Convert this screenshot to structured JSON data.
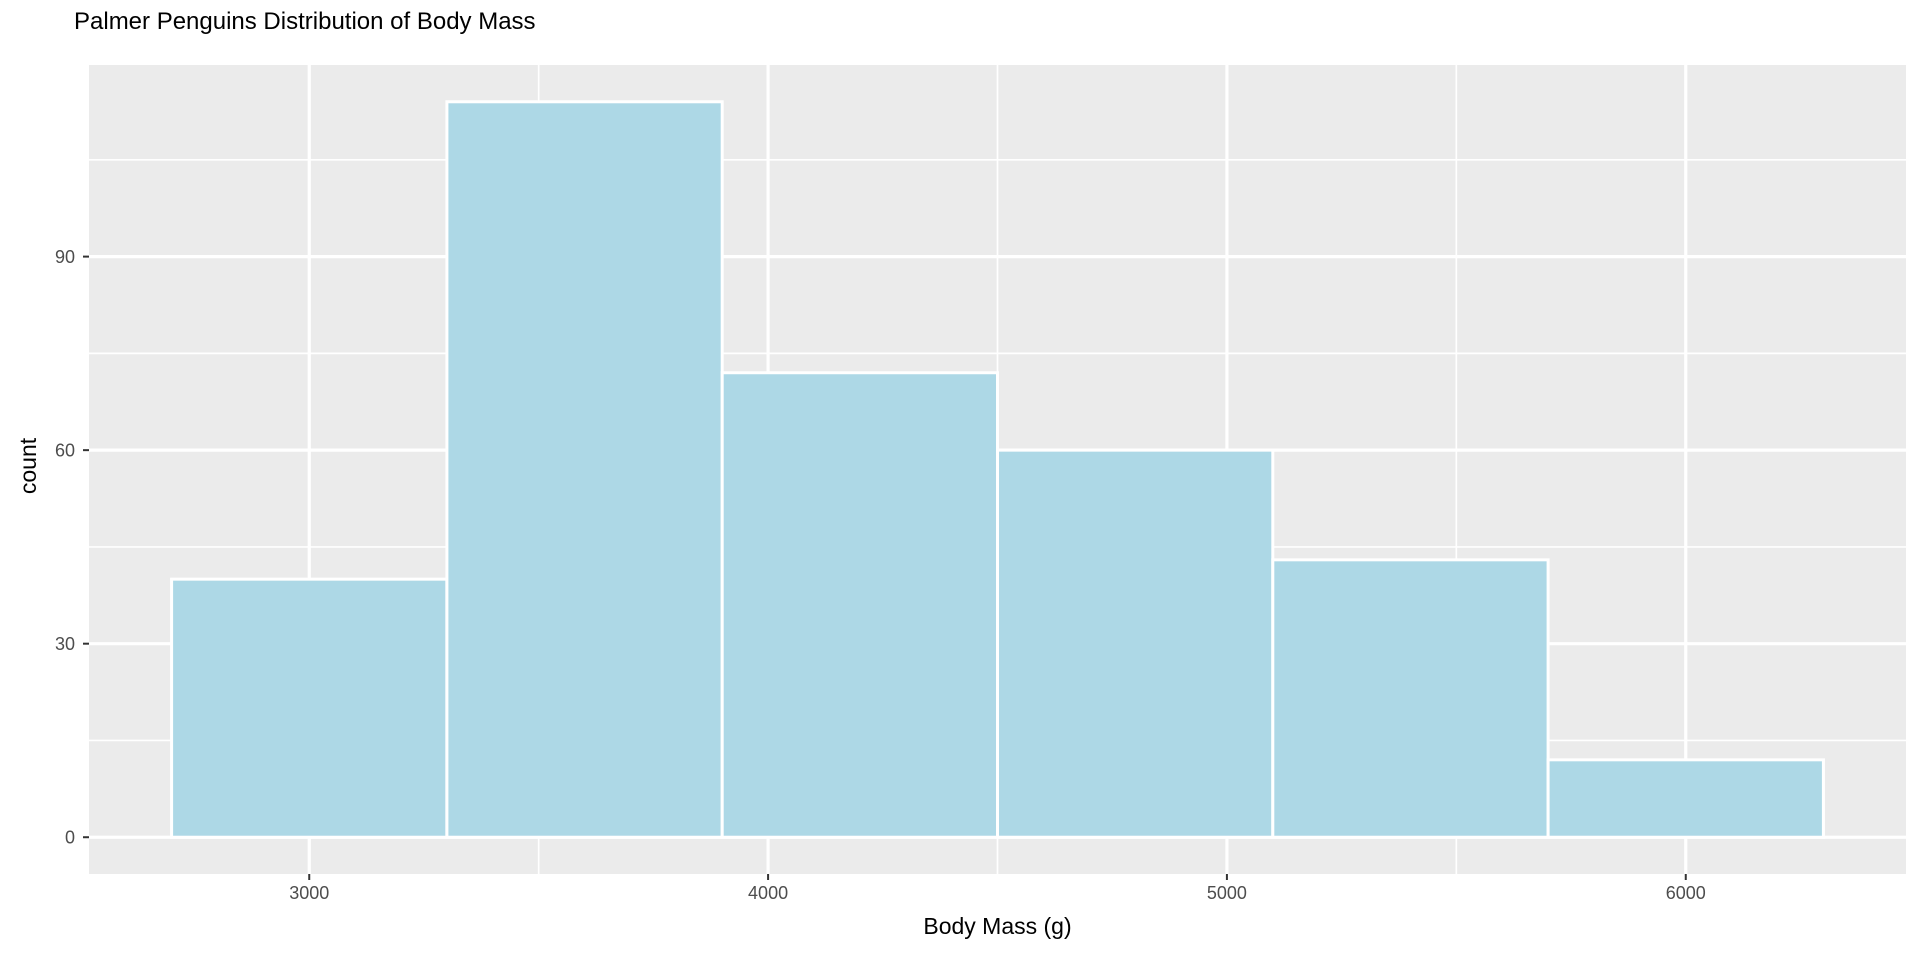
{
  "title": "Palmer Penguins Distribution of Body Mass",
  "chart_data": {
    "type": "bar",
    "subtype": "histogram",
    "title": "Palmer Penguins Distribution of Body Mass",
    "xlabel": "Body Mass (g)",
    "ylabel": "count",
    "bin_edges": [
      2700,
      3300,
      3900,
      4500,
      5100,
      5700,
      6300
    ],
    "counts": [
      40,
      114,
      72,
      60,
      43,
      12
    ],
    "x_ticks": [
      3000,
      4000,
      5000,
      6000
    ],
    "x_tick_labels": [
      "3000",
      "4000",
      "5000",
      "6000"
    ],
    "y_ticks": [
      0,
      30,
      60,
      90
    ],
    "y_tick_labels": [
      "0",
      "30",
      "60",
      "90"
    ],
    "x_minor_ticks": [
      3500,
      4500,
      5500
    ],
    "y_minor_ticks": [
      15,
      45,
      75,
      105
    ],
    "xlim": [
      2520,
      6480
    ],
    "ylim": [
      -5.7,
      119.7
    ],
    "grid": true,
    "legend": false,
    "colors": {
      "bar_fill": "#ADD8E6",
      "bar_stroke": "#FFFFFF",
      "panel_background": "#EBEBEB",
      "grid_line": "#FFFFFF",
      "tick_label": "#4D4D4D",
      "tick_mark": "#333333",
      "text": "#000000",
      "figure_background": "#FFFFFF"
    }
  }
}
